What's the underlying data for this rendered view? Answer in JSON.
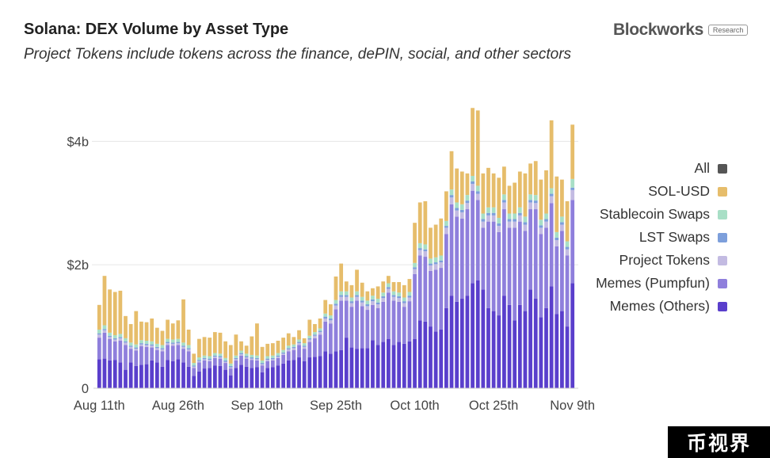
{
  "header": {
    "title": "Solana: DEX Volume by Asset Type",
    "subtitle": "Project Tokens include tokens across the finance, dePIN, social, and other sectors",
    "brand": "Blockworks",
    "brand_tag": "Research"
  },
  "watermark": "币视界",
  "chart_data": {
    "type": "bar",
    "stacked": true,
    "title": "Solana: DEX Volume by Asset Type",
    "subtitle": "Project Tokens include tokens across the finance, dePIN, social, and other sectors",
    "xlabel": "",
    "ylabel": "",
    "ylim": [
      0,
      4800000000
    ],
    "y_ticks": [
      {
        "value": 0,
        "label": "0"
      },
      {
        "value": 2000000000,
        "label": "$2b"
      },
      {
        "value": 4000000000,
        "label": "$4b"
      }
    ],
    "x_tick_labels": [
      {
        "index": 0,
        "label": "Aug 11th"
      },
      {
        "index": 15,
        "label": "Aug 26th"
      },
      {
        "index": 30,
        "label": "Sep 10th"
      },
      {
        "index": 45,
        "label": "Sep 25th"
      },
      {
        "index": 60,
        "label": "Oct 10th"
      },
      {
        "index": 75,
        "label": "Oct 25th"
      },
      {
        "index": 90,
        "label": "Nov 9th"
      }
    ],
    "legend_position": "right",
    "legend": [
      {
        "name": "All",
        "color": "#555555"
      },
      {
        "name": "SOL-USD",
        "color": "#e6bd6b"
      },
      {
        "name": "Stablecoin Swaps",
        "color": "#a8dfc6"
      },
      {
        "name": "LST Swaps",
        "color": "#7d9fdb"
      },
      {
        "name": "Project Tokens",
        "color": "#c3bbe2"
      },
      {
        "name": "Memes (Pumpfun)",
        "color": "#8f7fdc"
      },
      {
        "name": "Memes (Others)",
        "color": "#5a3fcc"
      }
    ],
    "categories": [
      "Aug 11th",
      "Aug 12th",
      "Aug 13th",
      "Aug 14th",
      "Aug 15th",
      "Aug 16th",
      "Aug 17th",
      "Aug 18th",
      "Aug 19th",
      "Aug 20th",
      "Aug 21st",
      "Aug 22nd",
      "Aug 23rd",
      "Aug 24th",
      "Aug 25th",
      "Aug 26th",
      "Aug 27th",
      "Aug 28th",
      "Aug 29th",
      "Aug 30th",
      "Aug 31st",
      "Sep 1st",
      "Sep 2nd",
      "Sep 3rd",
      "Sep 4th",
      "Sep 5th",
      "Sep 6th",
      "Sep 7th",
      "Sep 8th",
      "Sep 9th",
      "Sep 10th",
      "Sep 11th",
      "Sep 12th",
      "Sep 13th",
      "Sep 14th",
      "Sep 15th",
      "Sep 16th",
      "Sep 17th",
      "Sep 18th",
      "Sep 19th",
      "Sep 20th",
      "Sep 21st",
      "Sep 22nd",
      "Sep 23rd",
      "Sep 24th",
      "Sep 25th",
      "Sep 26th",
      "Sep 27th",
      "Sep 28th",
      "Sep 29th",
      "Sep 30th",
      "Oct 1st",
      "Oct 2nd",
      "Oct 3rd",
      "Oct 4th",
      "Oct 5th",
      "Oct 6th",
      "Oct 7th",
      "Oct 8th",
      "Oct 9th",
      "Oct 10th",
      "Oct 11th",
      "Oct 12th",
      "Oct 13th",
      "Oct 14th",
      "Oct 15th",
      "Oct 16th",
      "Oct 17th",
      "Oct 18th",
      "Oct 19th",
      "Oct 20th",
      "Oct 21st",
      "Oct 22nd",
      "Oct 23rd",
      "Oct 24th",
      "Oct 25th",
      "Oct 26th",
      "Oct 27th",
      "Oct 28th",
      "Oct 29th",
      "Oct 30th",
      "Oct 31st",
      "Nov 1st",
      "Nov 2nd",
      "Nov 3rd",
      "Nov 4th",
      "Nov 5th",
      "Nov 6th",
      "Nov 7th",
      "Nov 8th",
      "Nov 9th"
    ],
    "series": [
      {
        "name": "Memes (Others)",
        "color": "#5a3fcc",
        "values": [
          470000000,
          480000000,
          450000000,
          460000000,
          420000000,
          300000000,
          420000000,
          360000000,
          380000000,
          390000000,
          450000000,
          420000000,
          350000000,
          460000000,
          440000000,
          470000000,
          420000000,
          350000000,
          200000000,
          270000000,
          320000000,
          330000000,
          370000000,
          360000000,
          300000000,
          210000000,
          330000000,
          380000000,
          350000000,
          330000000,
          340000000,
          260000000,
          330000000,
          340000000,
          370000000,
          400000000,
          450000000,
          460000000,
          500000000,
          440000000,
          500000000,
          510000000,
          520000000,
          600000000,
          560000000,
          600000000,
          620000000,
          820000000,
          660000000,
          640000000,
          650000000,
          650000000,
          780000000,
          700000000,
          750000000,
          800000000,
          700000000,
          750000000,
          720000000,
          760000000,
          800000000,
          1100000000,
          1080000000,
          1000000000,
          920000000,
          950000000,
          1300000000,
          1500000000,
          1400000000,
          1450000000,
          1500000000,
          1700000000,
          1750000000,
          1600000000,
          1300000000,
          1250000000,
          1180000000,
          1500000000,
          1350000000,
          1100000000,
          1350000000,
          1250000000,
          1600000000,
          1450000000,
          1150000000,
          1300000000,
          1650000000,
          1200000000,
          1250000000,
          1000000000,
          1700000000
        ]
      },
      {
        "name": "Memes (Pumpfun)",
        "color": "#8f7fdc",
        "values": [
          350000000,
          420000000,
          350000000,
          300000000,
          350000000,
          400000000,
          220000000,
          250000000,
          300000000,
          280000000,
          210000000,
          200000000,
          250000000,
          240000000,
          250000000,
          230000000,
          220000000,
          250000000,
          130000000,
          150000000,
          130000000,
          110000000,
          120000000,
          120000000,
          110000000,
          110000000,
          120000000,
          150000000,
          130000000,
          130000000,
          110000000,
          110000000,
          110000000,
          110000000,
          120000000,
          140000000,
          150000000,
          160000000,
          200000000,
          200000000,
          250000000,
          300000000,
          350000000,
          480000000,
          490000000,
          680000000,
          800000000,
          600000000,
          660000000,
          780000000,
          680000000,
          620000000,
          570000000,
          600000000,
          650000000,
          750000000,
          720000000,
          650000000,
          600000000,
          650000000,
          1050000000,
          1050000000,
          1050000000,
          900000000,
          1000000000,
          1000000000,
          1200000000,
          1480000000,
          1380000000,
          1300000000,
          1400000000,
          1500000000,
          1300000000,
          1000000000,
          1400000000,
          1450000000,
          1350000000,
          1400000000,
          1250000000,
          1500000000,
          1350000000,
          1300000000,
          1300000000,
          1450000000,
          1350000000,
          1300000000,
          1350000000,
          1100000000,
          1300000000,
          1150000000,
          1350000000
        ]
      },
      {
        "name": "Project Tokens",
        "color": "#c3bbe2",
        "values": [
          50000000,
          40000000,
          30000000,
          30000000,
          40000000,
          40000000,
          30000000,
          30000000,
          30000000,
          30000000,
          30000000,
          30000000,
          30000000,
          30000000,
          30000000,
          30000000,
          30000000,
          30000000,
          20000000,
          20000000,
          20000000,
          20000000,
          20000000,
          20000000,
          20000000,
          20000000,
          20000000,
          20000000,
          20000000,
          20000000,
          20000000,
          20000000,
          20000000,
          20000000,
          20000000,
          20000000,
          30000000,
          30000000,
          30000000,
          30000000,
          40000000,
          40000000,
          40000000,
          50000000,
          50000000,
          60000000,
          60000000,
          60000000,
          60000000,
          60000000,
          60000000,
          60000000,
          60000000,
          60000000,
          60000000,
          60000000,
          60000000,
          60000000,
          60000000,
          60000000,
          80000000,
          90000000,
          90000000,
          90000000,
          90000000,
          90000000,
          100000000,
          110000000,
          100000000,
          100000000,
          100000000,
          110000000,
          100000000,
          100000000,
          100000000,
          100000000,
          100000000,
          110000000,
          100000000,
          100000000,
          100000000,
          100000000,
          110000000,
          100000000,
          100000000,
          100000000,
          110000000,
          100000000,
          100000000,
          100000000,
          160000000
        ]
      },
      {
        "name": "LST Swaps",
        "color": "#7d9fdb",
        "values": [
          20000000,
          20000000,
          20000000,
          20000000,
          20000000,
          20000000,
          20000000,
          20000000,
          20000000,
          20000000,
          20000000,
          20000000,
          20000000,
          20000000,
          20000000,
          20000000,
          20000000,
          20000000,
          20000000,
          20000000,
          20000000,
          20000000,
          20000000,
          20000000,
          20000000,
          20000000,
          20000000,
          20000000,
          20000000,
          20000000,
          20000000,
          20000000,
          20000000,
          20000000,
          20000000,
          20000000,
          20000000,
          20000000,
          20000000,
          20000000,
          20000000,
          20000000,
          20000000,
          30000000,
          30000000,
          30000000,
          30000000,
          30000000,
          30000000,
          30000000,
          30000000,
          30000000,
          30000000,
          30000000,
          30000000,
          30000000,
          30000000,
          30000000,
          30000000,
          30000000,
          30000000,
          30000000,
          30000000,
          30000000,
          30000000,
          30000000,
          30000000,
          40000000,
          40000000,
          40000000,
          40000000,
          40000000,
          40000000,
          40000000,
          40000000,
          40000000,
          40000000,
          40000000,
          40000000,
          40000000,
          40000000,
          40000000,
          40000000,
          40000000,
          40000000,
          40000000,
          40000000,
          40000000,
          40000000,
          40000000,
          40000000
        ]
      },
      {
        "name": "Stablecoin Swaps",
        "color": "#a8dfc6",
        "values": [
          60000000,
          60000000,
          50000000,
          50000000,
          50000000,
          50000000,
          50000000,
          50000000,
          50000000,
          50000000,
          50000000,
          50000000,
          50000000,
          50000000,
          50000000,
          50000000,
          50000000,
          50000000,
          40000000,
          40000000,
          40000000,
          40000000,
          40000000,
          40000000,
          40000000,
          40000000,
          40000000,
          40000000,
          40000000,
          40000000,
          40000000,
          40000000,
          40000000,
          40000000,
          40000000,
          40000000,
          40000000,
          40000000,
          40000000,
          40000000,
          40000000,
          40000000,
          40000000,
          50000000,
          50000000,
          60000000,
          60000000,
          60000000,
          60000000,
          60000000,
          60000000,
          60000000,
          60000000,
          60000000,
          60000000,
          60000000,
          60000000,
          60000000,
          60000000,
          60000000,
          70000000,
          80000000,
          80000000,
          80000000,
          80000000,
          80000000,
          80000000,
          90000000,
          90000000,
          90000000,
          90000000,
          90000000,
          90000000,
          90000000,
          90000000,
          90000000,
          90000000,
          90000000,
          90000000,
          90000000,
          90000000,
          90000000,
          90000000,
          90000000,
          90000000,
          90000000,
          90000000,
          90000000,
          90000000,
          90000000,
          140000000
        ]
      },
      {
        "name": "SOL-USD",
        "color": "#e6bd6b",
        "values": [
          400000000,
          800000000,
          700000000,
          700000000,
          700000000,
          360000000,
          300000000,
          540000000,
          300000000,
          300000000,
          370000000,
          260000000,
          230000000,
          310000000,
          260000000,
          300000000,
          700000000,
          250000000,
          150000000,
          300000000,
          300000000,
          300000000,
          340000000,
          340000000,
          270000000,
          300000000,
          340000000,
          150000000,
          130000000,
          300000000,
          520000000,
          220000000,
          200000000,
          200000000,
          200000000,
          200000000,
          200000000,
          120000000,
          150000000,
          80000000,
          260000000,
          130000000,
          160000000,
          220000000,
          180000000,
          380000000,
          450000000,
          160000000,
          200000000,
          350000000,
          230000000,
          150000000,
          120000000,
          200000000,
          180000000,
          120000000,
          150000000,
          170000000,
          200000000,
          210000000,
          650000000,
          660000000,
          700000000,
          500000000,
          530000000,
          600000000,
          480000000,
          620000000,
          550000000,
          530000000,
          350000000,
          1100000000,
          1220000000,
          650000000,
          640000000,
          550000000,
          650000000,
          450000000,
          450000000,
          500000000,
          580000000,
          700000000,
          500000000,
          550000000,
          650000000,
          700000000,
          1100000000,
          900000000,
          600000000,
          650000000,
          880000000
        ]
      }
    ]
  }
}
